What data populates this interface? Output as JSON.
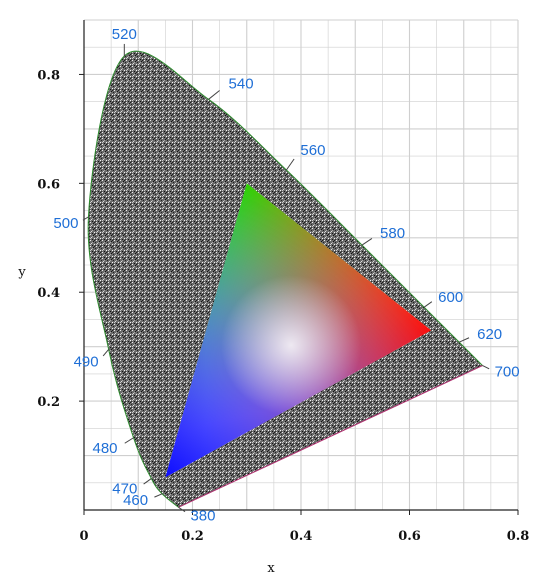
{
  "chart_data": {
    "type": "scatter",
    "title": "",
    "xlabel": "x",
    "ylabel": "y",
    "xlim": [
      0,
      0.8
    ],
    "ylim": [
      0,
      0.9
    ],
    "grid": true,
    "x_ticks": [
      {
        "value": 0,
        "label": "0"
      },
      {
        "value": 0.2,
        "label": "0.2"
      },
      {
        "value": 0.4,
        "label": "0.4"
      },
      {
        "value": 0.6,
        "label": "0.6"
      },
      {
        "value": 0.8,
        "label": "0.8"
      }
    ],
    "y_ticks": [
      {
        "value": 0.2,
        "label": "0.2"
      },
      {
        "value": 0.4,
        "label": "0.4"
      },
      {
        "value": 0.6,
        "label": "0.6"
      },
      {
        "value": 0.8,
        "label": "0.8"
      }
    ],
    "spectral_locus": [
      {
        "wavelength": "380",
        "x": 0.1741,
        "y": 0.005
      },
      {
        "wavelength": "460",
        "x": 0.144,
        "y": 0.0297
      },
      {
        "wavelength": "470",
        "x": 0.1241,
        "y": 0.0578
      },
      {
        "wavelength": "480",
        "x": 0.0913,
        "y": 0.1327
      },
      {
        "wavelength": "490",
        "x": 0.0454,
        "y": 0.295
      },
      {
        "wavelength": "500",
        "x": 0.0082,
        "y": 0.5384
      },
      {
        "wavelength": "520",
        "x": 0.0743,
        "y": 0.8338
      },
      {
        "wavelength": "540",
        "x": 0.2296,
        "y": 0.7543
      },
      {
        "wavelength": "560",
        "x": 0.3731,
        "y": 0.6245
      },
      {
        "wavelength": "580",
        "x": 0.5125,
        "y": 0.4866
      },
      {
        "wavelength": "600",
        "x": 0.627,
        "y": 0.3725
      },
      {
        "wavelength": "620",
        "x": 0.6915,
        "y": 0.3083
      },
      {
        "wavelength": "700",
        "x": 0.7347,
        "y": 0.2653
      }
    ],
    "gamut_triangle": [
      {
        "name": "red",
        "x": 0.64,
        "y": 0.33
      },
      {
        "name": "green",
        "x": 0.3,
        "y": 0.6
      },
      {
        "name": "blue",
        "x": 0.15,
        "y": 0.06
      }
    ],
    "colors": {
      "label": "#1f6fd6",
      "locus_fill": "#5a5a5a",
      "grid": "#cfcfcf",
      "red": "#ff1a1a",
      "green": "#00ff00",
      "blue": "#1a1aff",
      "white": "#ffffff"
    }
  }
}
